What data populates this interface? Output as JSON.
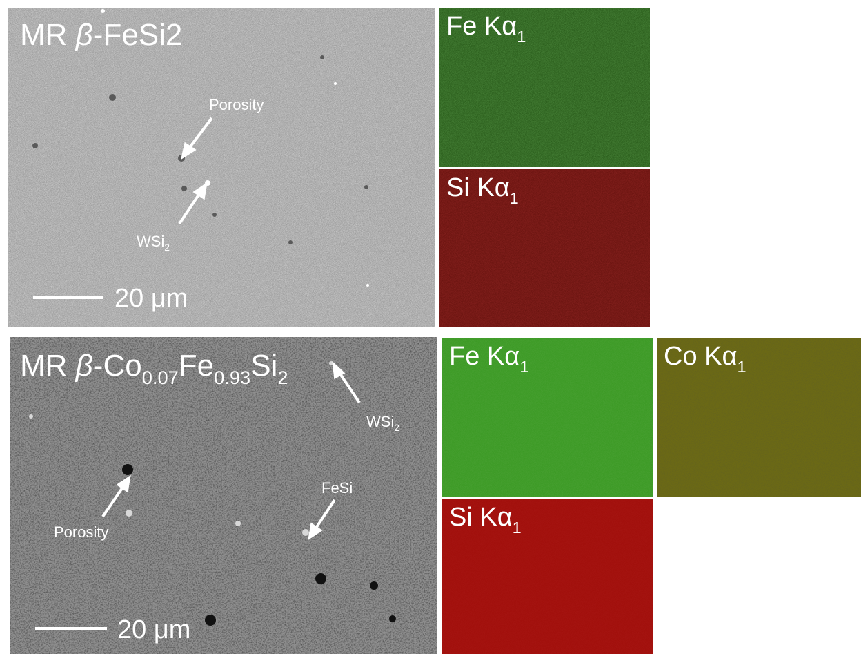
{
  "colors": {
    "sem_top": "#c9c9c9",
    "sem_bottom": "#8f8f8f",
    "fe_top": "#2b5e1c",
    "fe_bottom": "#3c9a25",
    "si_top": "#6b1410",
    "si_bottom": "#a10f0b",
    "co_bottom": "#6c6a14",
    "label": "#ffffff"
  },
  "top": {
    "title_prefix": "MR ",
    "title_beta": "β",
    "title_rest": "-FeSi2",
    "annotations": {
      "porosity": "Porosity",
      "wsi_main": "WSi",
      "wsi_sub": "2"
    },
    "scale_text": "20 μm",
    "maps": {
      "fe_main": "Fe Kα",
      "fe_sub": "1",
      "si_main": "Si Kα",
      "si_sub": "1"
    }
  },
  "bottom": {
    "title_prefix": "MR ",
    "title_beta": "β",
    "title_co": "-Co",
    "title_co_sub": "0.07",
    "title_fe": "Fe",
    "title_fe_sub": "0.93",
    "title_si": "Si",
    "title_si_sub": "2",
    "annotations": {
      "wsi_main": "WSi",
      "wsi_sub": "2",
      "fesi": "FeSi",
      "porosity": "Porosity"
    },
    "scale_text": "20 μm",
    "maps": {
      "fe_main": "Fe Kα",
      "fe_sub": "1",
      "co_main": "Co Kα",
      "co_sub": "1",
      "si_main": "Si Kα",
      "si_sub": "1"
    }
  }
}
